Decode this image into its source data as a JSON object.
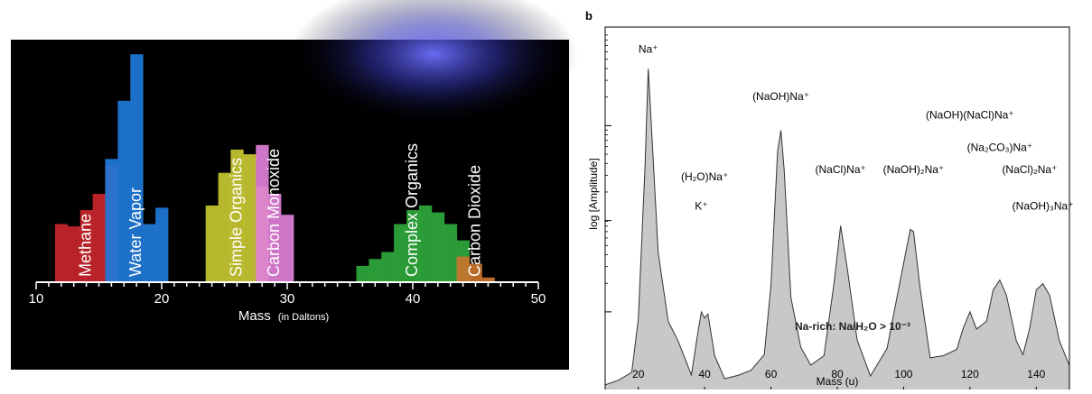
{
  "chart_data": [
    {
      "type": "bar",
      "xlabel_main": "Mass",
      "xlabel_unit": "(in Daltons)",
      "xlim": [
        10,
        50
      ],
      "x_ticks": [
        "10",
        "20",
        "30",
        "40",
        "50"
      ],
      "legend": "none",
      "grid": false,
      "colors": {
        "background": "#000000",
        "glow": "#4a4cff",
        "axis": "#ffffff"
      },
      "series": [
        {
          "name": "Methane",
          "color": "#c8262c",
          "x": [
            12,
            13,
            14,
            15,
            16
          ],
          "values": [
            0.25,
            0.24,
            0.31,
            0.38,
            0.5
          ]
        },
        {
          "name": "Water Vapor",
          "color": "#1f7ad8",
          "x": [
            16,
            17,
            18,
            19,
            20
          ],
          "values": [
            0.53,
            0.78,
            0.98,
            0.25,
            0.32
          ]
        },
        {
          "name": "Simple Organics",
          "color": "#c8c832",
          "x": [
            24,
            25,
            26,
            27,
            28
          ],
          "values": [
            0.33,
            0.47,
            0.57,
            0.55,
            0.41
          ]
        },
        {
          "name": "Carbon Monoxide",
          "color": "#e080d8",
          "x": [
            28,
            29,
            30
          ],
          "values": [
            0.59,
            0.38,
            0.29
          ]
        },
        {
          "name": "Complex Organics",
          "color": "#2fa83c",
          "x": [
            36,
            37,
            38,
            39,
            40,
            41,
            42,
            43,
            44
          ],
          "values": [
            0.07,
            0.1,
            0.13,
            0.25,
            0.31,
            0.33,
            0.3,
            0.25,
            0.18
          ]
        },
        {
          "name": "Carbon Dioxide",
          "color": "#c8742c",
          "x": [
            44,
            45,
            46
          ],
          "values": [
            0.11,
            0.08,
            0.02
          ]
        }
      ]
    },
    {
      "type": "area",
      "panel_label": "b",
      "xlabel": "Mass (u)",
      "ylabel": "log [Amplitude]",
      "xlim": [
        10,
        150
      ],
      "x_ticks": [
        "20",
        "40",
        "60",
        "80",
        "100",
        "120",
        "140"
      ],
      "scale": "log",
      "fill_color": "#c8c8c8",
      "legend": "none",
      "grid": false,
      "inset_text": "Na-rich: Na/H₂O > 10⁻³",
      "series": [
        {
          "name": "",
          "x": [
            10,
            14,
            18,
            20,
            22,
            23,
            24,
            26,
            29,
            32,
            36,
            38,
            39,
            40,
            41,
            43,
            46,
            50,
            54,
            58,
            60,
            62,
            63,
            64,
            66,
            69,
            72,
            76,
            79,
            81,
            83,
            86,
            90,
            95,
            99,
            102,
            103,
            105,
            108,
            112,
            116,
            118,
            120,
            122,
            125,
            127,
            129,
            131,
            134,
            136,
            138,
            140,
            142,
            144,
            147,
            150
          ],
          "values": [
            0.02,
            0.03,
            0.06,
            0.2,
            0.62,
            0.88,
            0.72,
            0.38,
            0.2,
            0.14,
            0.05,
            0.16,
            0.22,
            0.2,
            0.22,
            0.1,
            0.04,
            0.04,
            0.06,
            0.1,
            0.3,
            0.66,
            0.72,
            0.6,
            0.26,
            0.12,
            0.08,
            0.1,
            0.3,
            0.45,
            0.34,
            0.14,
            0.05,
            0.12,
            0.31,
            0.44,
            0.44,
            0.28,
            0.1,
            0.1,
            0.12,
            0.17,
            0.22,
            0.17,
            0.2,
            0.28,
            0.31,
            0.26,
            0.14,
            0.1,
            0.18,
            0.28,
            0.3,
            0.26,
            0.14,
            0.07
          ]
        }
      ],
      "annotations": [
        {
          "x": 23,
          "y": 0.93,
          "text": "Na⁺"
        },
        {
          "x": 39,
          "y": 0.5,
          "text": "K⁺"
        },
        {
          "x": 40,
          "y": 0.58,
          "text": "(H₂O)Na⁺"
        },
        {
          "x": 63,
          "y": 0.8,
          "text": "(NaOH)Na⁺"
        },
        {
          "x": 81,
          "y": 0.6,
          "text": "(NaCl)Na⁺"
        },
        {
          "x": 103,
          "y": 0.6,
          "text": "(NaOH)₂Na⁺"
        },
        {
          "x": 120,
          "y": 0.75,
          "text": "(NaOH)(NaCl)Na⁺"
        },
        {
          "x": 129,
          "y": 0.66,
          "text": "(Na₂CO₃)Na⁺"
        },
        {
          "x": 138,
          "y": 0.6,
          "text": "(NaCl)₂Na⁺"
        },
        {
          "x": 142,
          "y": 0.5,
          "text": "(NaOH)₃Na⁺"
        }
      ]
    }
  ]
}
